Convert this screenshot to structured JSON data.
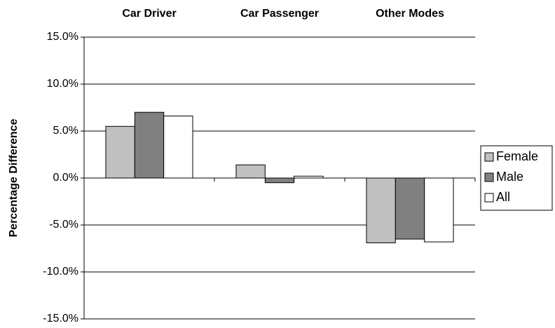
{
  "chart_data": {
    "type": "bar",
    "y_label": "Percentage Difference",
    "categories": [
      "Car Driver",
      "Car Passenger",
      "Other Modes"
    ],
    "series": [
      {
        "name": "Female",
        "color": "#c0c0c0",
        "values": [
          5.5,
          1.4,
          -6.9
        ]
      },
      {
        "name": "Male",
        "color": "#808080",
        "values": [
          7.0,
          -0.5,
          -6.5
        ]
      },
      {
        "name": "All",
        "color": "#ffffff",
        "values": [
          6.6,
          0.2,
          -6.8
        ]
      }
    ],
    "ylim": [
      -15,
      15
    ],
    "yticks": [
      {
        "value": -15,
        "label": "-15.0%"
      },
      {
        "value": -10,
        "label": "-10.0%"
      },
      {
        "value": -5,
        "label": "-5.0%"
      },
      {
        "value": 0,
        "label": "0.0%"
      },
      {
        "value": 5,
        "label": "5.0%"
      },
      {
        "value": 10,
        "label": "10.0%"
      },
      {
        "value": 15,
        "label": "15.0%"
      }
    ],
    "grid": true,
    "legend": "right"
  }
}
